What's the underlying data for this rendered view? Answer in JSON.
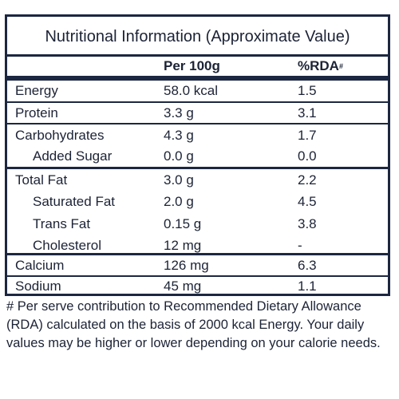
{
  "title": "Nutritional Information (Approximate Value)",
  "headers": {
    "per100": "Per 100g",
    "rda": "%RDA",
    "rda_mark": "#"
  },
  "rows": [
    {
      "label": "Energy",
      "per100": "58.0 kcal",
      "rda": "1.5"
    },
    {
      "label": "Protein",
      "per100": "3.3 g",
      "rda": "3.1"
    },
    {
      "label": "Carbohydrates",
      "per100": "4.3 g",
      "rda": "1.7"
    },
    {
      "label": "Added Sugar",
      "per100": "0.0 g",
      "rda": "0.0"
    },
    {
      "label": "Total Fat",
      "per100": "3.0 g",
      "rda": "2.2"
    },
    {
      "label": "Saturated Fat",
      "per100": "2.0 g",
      "rda": "4.5"
    },
    {
      "label": "Trans Fat",
      "per100": "0.15 g",
      "rda": "3.8"
    },
    {
      "label": "Cholesterol",
      "per100": "12 mg",
      "rda": "-"
    },
    {
      "label": "Calcium",
      "per100": "126 mg",
      "rda": "6.3"
    },
    {
      "label": "Sodium",
      "per100": "45 mg",
      "rda": "1.1"
    }
  ],
  "footnote": "# Per serve contribution to Recommended Dietary Allowance (RDA) calculated on the basis of 2000 kcal Energy. Your daily values may be higher or lower depending on your calorie needs."
}
